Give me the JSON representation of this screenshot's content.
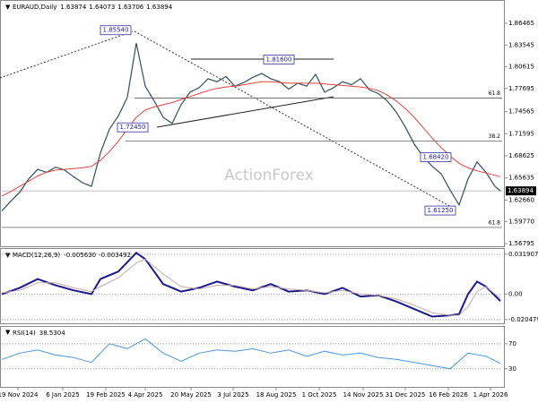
{
  "chart_data": [
    {
      "type": "line",
      "title": "EURAUD,Daily",
      "ohlc": [
        1.63874,
        1.64073,
        1.63706,
        1.63894
      ],
      "watermark": "ActionForex",
      "x": [
        0,
        10,
        20,
        30,
        40,
        50,
        60,
        70,
        80,
        90,
        100,
        110,
        120,
        130,
        140,
        150,
        160,
        170,
        180,
        190,
        200,
        210,
        220,
        230,
        240,
        250,
        260,
        270,
        280,
        290,
        300,
        310,
        320,
        330,
        340,
        350,
        360,
        370,
        380,
        390,
        400,
        410,
        420,
        430,
        440,
        450,
        460,
        470,
        480,
        490,
        500,
        510,
        520,
        530,
        540,
        550,
        556
      ],
      "series": [
        {
          "name": "EURAUD",
          "color": "#2f4f5f",
          "values": [
            1.612,
            1.625,
            1.637,
            1.655,
            1.668,
            1.664,
            1.671,
            1.667,
            1.658,
            1.65,
            1.645,
            1.69,
            1.722,
            1.74,
            1.765,
            1.838,
            1.78,
            1.76,
            1.738,
            1.73,
            1.755,
            1.772,
            1.778,
            1.79,
            1.786,
            1.793,
            1.78,
            1.785,
            1.792,
            1.797,
            1.79,
            1.786,
            1.776,
            1.784,
            1.78,
            1.796,
            1.772,
            1.778,
            1.786,
            1.782,
            1.79,
            1.775,
            1.77,
            1.76,
            1.745,
            1.725,
            1.702,
            1.685,
            1.672,
            1.662,
            1.64,
            1.62,
            1.655,
            1.678,
            1.664,
            1.645,
            1.63894
          ]
        },
        {
          "name": "MA",
          "color": "#e0443c",
          "values": [
            1.632,
            1.638,
            1.645,
            1.652,
            1.659,
            1.664,
            1.667,
            1.668,
            1.669,
            1.67,
            1.672,
            1.68,
            1.692,
            1.706,
            1.722,
            1.738,
            1.748,
            1.752,
            1.755,
            1.758,
            1.762,
            1.766,
            1.77,
            1.774,
            1.777,
            1.779,
            1.78,
            1.782,
            1.784,
            1.786,
            1.786,
            1.785,
            1.784,
            1.784,
            1.784,
            1.784,
            1.783,
            1.782,
            1.781,
            1.78,
            1.779,
            1.777,
            1.774,
            1.768,
            1.76,
            1.75,
            1.738,
            1.724,
            1.71,
            1.697,
            1.686,
            1.676,
            1.67,
            1.666,
            1.663,
            1.66,
            1.658
          ]
        }
      ],
      "last": 1.63894,
      "pivots": [
        {
          "x": 148,
          "value": 1.8554,
          "label": "1.85540"
        },
        {
          "x": 330,
          "value": 1.816,
          "label": "1.81600"
        },
        {
          "x": 167,
          "value": 1.7245,
          "label": "1.72450"
        },
        {
          "x": 505,
          "value": 1.6842,
          "label": "1.68420"
        },
        {
          "x": 510,
          "value": 1.6125,
          "label": "1.61250"
        }
      ],
      "levels": [
        {
          "value": 1.7641,
          "label": "61.8"
        },
        {
          "value": 1.706,
          "label": "38.2"
        },
        {
          "value": 1.5897,
          "label": "61.8"
        }
      ],
      "xlim": [
        0,
        558
      ],
      "ylim": [
        1.5643,
        1.8949
      ],
      "yticks": [
        1.86465,
        1.83545,
        1.80615,
        1.77695,
        1.74565,
        1.71595,
        1.68625,
        1.65635,
        {
          "value": 1.6266,
          "label": "1.62660"
        },
        {
          "value": 1.5977,
          "label": "1.59770"
        },
        1.56795
      ]
    },
    {
      "type": "line",
      "title": "MACD(12,26,9)",
      "readout": [
        {
          "value": -0.00563,
          "label": "-0.005630"
        },
        {
          "value": -0.003492,
          "label": "-0.003492"
        }
      ],
      "x": [
        0,
        20,
        40,
        60,
        80,
        100,
        110,
        130,
        150,
        160,
        180,
        200,
        220,
        240,
        260,
        280,
        300,
        320,
        340,
        360,
        380,
        400,
        420,
        440,
        460,
        480,
        500,
        510,
        520,
        530,
        540,
        556
      ],
      "series": [
        {
          "name": "MACD",
          "color": "#1a1a8c",
          "values": [
            0,
            0.005,
            0.012,
            0.007,
            0.003,
            0,
            0.012,
            0.018,
            0.033,
            0.028,
            0.008,
            0.002,
            0.005,
            0.01,
            0.006,
            0.003,
            0.008,
            0.002,
            0.003,
            0,
            0.005,
            -0.002,
            -0.001,
            -0.006,
            -0.012,
            -0.018,
            -0.017,
            -0.016,
            0,
            0.01,
            0.006,
            -0.00563
          ]
        },
        {
          "name": "Signal",
          "color": "#c9a9a9",
          "values": [
            0.001,
            0.003,
            0.009,
            0.009,
            0.005,
            0.002,
            0.006,
            0.013,
            0.025,
            0.028,
            0.016,
            0.006,
            0.004,
            0.007,
            0.007,
            0.004,
            0.006,
            0.004,
            0.003,
            0.001,
            0.003,
            0,
            -0.001,
            -0.004,
            -0.009,
            -0.015,
            -0.017,
            -0.017,
            -0.01,
            0.002,
            0.006,
            -0.003492
          ]
        }
      ],
      "xlim": [
        0,
        558
      ],
      "ylim": [
        -0.0234,
        0.0361
      ],
      "yticks": [
        0.031907,
        {
          "value": 0,
          "label": "0.00"
        },
        -0.020479
      ]
    },
    {
      "type": "line",
      "title": "RSI(14)",
      "readout": [
        38.5304
      ],
      "x": [
        0,
        20,
        40,
        60,
        80,
        100,
        120,
        140,
        160,
        180,
        200,
        220,
        240,
        260,
        280,
        300,
        320,
        340,
        360,
        380,
        400,
        420,
        440,
        460,
        480,
        500,
        520,
        540,
        556
      ],
      "series": [
        {
          "name": "RSI",
          "color": "#4a96e0",
          "values": [
            45,
            55,
            60,
            52,
            48,
            40,
            70,
            62,
            78,
            55,
            42,
            55,
            60,
            58,
            62,
            55,
            60,
            50,
            58,
            52,
            55,
            48,
            45,
            40,
            35,
            30,
            55,
            50,
            38.5304
          ]
        }
      ],
      "xlim": [
        0,
        558
      ],
      "ylim": [
        1,
        97
      ],
      "yticks": [
        70,
        30
      ],
      "xticks": [
        {
          "value": 18,
          "label": "19 Nov 2024"
        },
        {
          "value": 68,
          "label": "6 Jan 2025"
        },
        {
          "value": 116,
          "label": "19 Feb 2025"
        },
        {
          "value": 160,
          "label": "4 Apr 2025"
        },
        {
          "value": 211,
          "label": "20 May 2025"
        },
        {
          "value": 258,
          "label": "3 Jul 2025"
        },
        {
          "value": 306,
          "label": "18 Aug 2025"
        },
        {
          "value": 354,
          "label": "1 Oct 2025"
        },
        {
          "value": 403,
          "label": "14 Nov 2025"
        },
        {
          "value": 450,
          "label": "31 Dec 2025"
        },
        {
          "value": 498,
          "label": "16 Feb 2026"
        },
        {
          "value": 545,
          "label": "1 Apr 2026"
        }
      ]
    }
  ]
}
